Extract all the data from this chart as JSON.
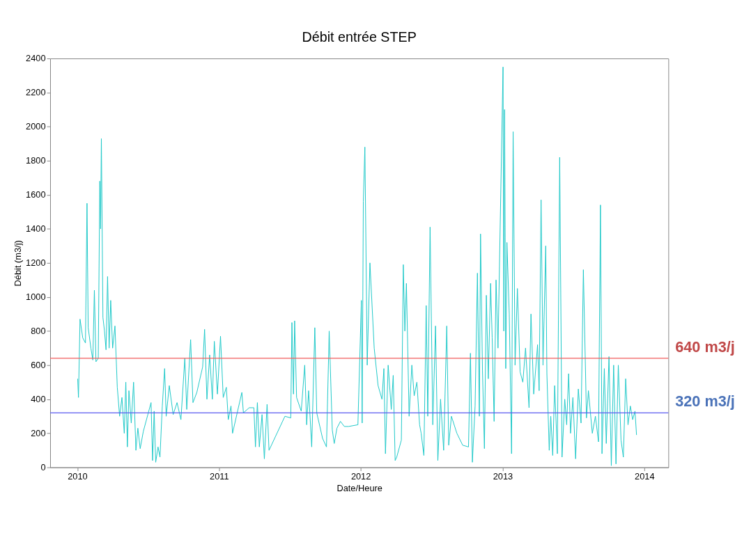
{
  "chart_data": {
    "type": "line",
    "title": "Débit entrée STEP",
    "xlabel": "Date/Heure",
    "ylabel": "Débit (m3/j)",
    "xlim": [
      "2009-10-23",
      "2014-03-04"
    ],
    "xticks": [
      "2010",
      "2011",
      "2012",
      "2013",
      "2014"
    ],
    "ylim": [
      0,
      2400
    ],
    "yticks": [
      0,
      200,
      400,
      600,
      800,
      1000,
      1200,
      1400,
      1600,
      1800,
      2000,
      2200,
      2400
    ],
    "series": [
      {
        "color": "#1ec8c8",
        "x": [
          "2010-01-02",
          "2010-01-04",
          "2010-01-08",
          "2010-01-15",
          "2010-01-22",
          "2010-01-26",
          "2010-01-29",
          "2010-02-05",
          "2010-02-10",
          "2010-02-14",
          "2010-02-18",
          "2010-02-24",
          "2010-02-28",
          "2010-03-02",
          "2010-03-04",
          "2010-03-08",
          "2010-03-12",
          "2010-03-16",
          "2010-03-20",
          "2010-03-24",
          "2010-03-28",
          "2010-04-02",
          "2010-04-08",
          "2010-04-14",
          "2010-04-20",
          "2010-04-26",
          "2010-05-02",
          "2010-05-06",
          "2010-05-10",
          "2010-05-14",
          "2010-05-20",
          "2010-05-26",
          "2010-06-01",
          "2010-06-06",
          "2010-06-12",
          "2010-06-20",
          "2010-07-10",
          "2010-07-14",
          "2010-07-18",
          "2010-07-22",
          "2010-07-28",
          "2010-08-02",
          "2010-08-08",
          "2010-08-14",
          "2010-08-18",
          "2010-08-26",
          "2010-09-05",
          "2010-09-15",
          "2010-09-25",
          "2010-10-05",
          "2010-10-10",
          "2010-10-20",
          "2010-10-26",
          "2010-11-05",
          "2010-11-20",
          "2010-11-25",
          "2010-12-01",
          "2010-12-08",
          "2010-12-15",
          "2010-12-20",
          "2010-12-28",
          "2011-01-05",
          "2011-01-12",
          "2011-01-20",
          "2011-01-25",
          "2011-02-01",
          "2011-02-05",
          "2011-02-20",
          "2011-03-01",
          "2011-03-05",
          "2011-03-20",
          "2011-04-01",
          "2011-04-05",
          "2011-04-10",
          "2011-04-15",
          "2011-04-22",
          "2011-04-28",
          "2011-05-05",
          "2011-05-10",
          "2011-06-20",
          "2011-07-05",
          "2011-07-08",
          "2011-07-12",
          "2011-07-15",
          "2011-07-20",
          "2011-08-01",
          "2011-08-10",
          "2011-08-15",
          "2011-08-20",
          "2011-08-28",
          "2011-09-05",
          "2011-09-10",
          "2011-09-25",
          "2011-10-05",
          "2011-10-12",
          "2011-10-20",
          "2011-10-25",
          "2011-11-01",
          "2011-11-10",
          "2011-11-20",
          "2011-12-01",
          "2011-12-25",
          "2012-01-03",
          "2012-01-05",
          "2012-01-08",
          "2012-01-12",
          "2012-01-18",
          "2012-01-25",
          "2012-02-05",
          "2012-02-15",
          "2012-02-25",
          "2012-03-01",
          "2012-03-05",
          "2012-03-12",
          "2012-03-20",
          "2012-03-25",
          "2012-03-30",
          "2012-04-03",
          "2012-04-15",
          "2012-04-20",
          "2012-04-24",
          "2012-04-28",
          "2012-05-05",
          "2012-05-12",
          "2012-05-18",
          "2012-05-25",
          "2012-06-01",
          "2012-06-05",
          "2012-06-12",
          "2012-06-18",
          "2012-06-22",
          "2012-06-28",
          "2012-07-05",
          "2012-07-12",
          "2012-07-18",
          "2012-07-25",
          "2012-08-02",
          "2012-08-10",
          "2012-08-15",
          "2012-08-22",
          "2012-09-05",
          "2012-09-20",
          "2012-10-05",
          "2012-10-10",
          "2012-10-15",
          "2012-10-22",
          "2012-10-28",
          "2012-11-02",
          "2012-11-05",
          "2012-11-10",
          "2012-11-15",
          "2012-11-20",
          "2012-11-25",
          "2012-12-01",
          "2012-12-05",
          "2012-12-10",
          "2012-12-15",
          "2012-12-20",
          "2013-01-02",
          "2013-01-04",
          "2013-01-06",
          "2013-01-09",
          "2013-01-12",
          "2013-01-18",
          "2013-01-24",
          "2013-01-28",
          "2013-02-02",
          "2013-02-08",
          "2013-02-15",
          "2013-02-22",
          "2013-03-01",
          "2013-03-10",
          "2013-03-15",
          "2013-03-22",
          "2013-04-01",
          "2013-04-05",
          "2013-04-10",
          "2013-04-15",
          "2013-04-22",
          "2013-04-25",
          "2013-05-01",
          "2013-05-05",
          "2013-05-10",
          "2013-05-15",
          "2013-05-22",
          "2013-05-28",
          "2013-06-03",
          "2013-06-10",
          "2013-06-15",
          "2013-06-20",
          "2013-06-25",
          "2013-07-01",
          "2013-07-08",
          "2013-07-15",
          "2013-07-22",
          "2013-07-28",
          "2013-08-05",
          "2013-08-10",
          "2013-08-20",
          "2013-08-28",
          "2013-09-05",
          "2013-09-10",
          "2013-09-14",
          "2013-09-20",
          "2013-09-25",
          "2013-10-02",
          "2013-10-08",
          "2013-10-14",
          "2013-10-20",
          "2013-10-26",
          "2013-11-02",
          "2013-11-08",
          "2013-11-14",
          "2013-11-20",
          "2013-11-26",
          "2013-12-02",
          "2013-12-08",
          "2013-12-12"
        ],
        "values": [
          520,
          410,
          870,
          760,
          730,
          1550,
          820,
          700,
          630,
          1040,
          620,
          640,
          1680,
          1400,
          1930,
          880,
          800,
          690,
          1120,
          700,
          980,
          700,
          830,
          470,
          300,
          410,
          200,
          500,
          120,
          450,
          260,
          500,
          100,
          230,
          110,
          210,
          380,
          40,
          330,
          30,
          120,
          60,
          360,
          580,
          300,
          480,
          310,
          380,
          280,
          640,
          340,
          750,
          380,
          440,
          590,
          810,
          400,
          660,
          400,
          740,
          430,
          770,
          410,
          470,
          280,
          360,
          200,
          350,
          440,
          320,
          350,
          350,
          120,
          380,
          120,
          310,
          50,
          370,
          100,
          300,
          290,
          850,
          430,
          860,
          410,
          330,
          600,
          250,
          450,
          120,
          820,
          320,
          170,
          120,
          800,
          220,
          140,
          230,
          270,
          240,
          240,
          250,
          980,
          260,
          1560,
          1880,
          600,
          1200,
          700,
          480,
          400,
          580,
          80,
          600,
          340,
          540,
          40,
          60,
          160,
          1190,
          800,
          1080,
          300,
          600,
          420,
          500,
          250,
          200,
          70,
          950,
          300,
          1410,
          250,
          830,
          40,
          400,
          100,
          830,
          130,
          300,
          200,
          130,
          120,
          670,
          30,
          360,
          1140,
          300,
          1370,
          570,
          110,
          1010,
          520,
          1080,
          760,
          270,
          1100,
          700,
          2350,
          800,
          2100,
          580,
          1320,
          900,
          80,
          1970,
          600,
          1050,
          560,
          500,
          700,
          350,
          900,
          430,
          720,
          450,
          1570,
          600,
          1300,
          550,
          100,
          300,
          70,
          480,
          80,
          1820,
          60,
          400,
          250,
          550,
          200,
          410,
          50,
          460,
          260,
          1160,
          290,
          450,
          200,
          300,
          150,
          1540,
          80,
          580,
          140,
          650,
          10,
          600,
          20,
          600,
          160,
          60,
          520,
          250,
          360,
          280,
          330,
          190
        ]
      }
    ],
    "ref_lines": [
      {
        "axis": "y",
        "value": 640,
        "label": "640 m3/j",
        "color": "#f05a5a"
      },
      {
        "axis": "y",
        "value": 320,
        "label": "320 m3/j",
        "color": "#5a5af0"
      }
    ]
  }
}
